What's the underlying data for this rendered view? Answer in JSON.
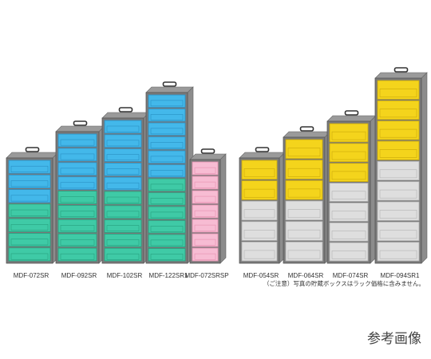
{
  "labels": [
    "MDF-072SR",
    "MDF-092SR",
    "MDF-102SR",
    "MDF-122SR1",
    "MDF-072SRSP",
    "MDF-054SR",
    "MDF-064SR",
    "MDF-074SR",
    "MDF-094SR1"
  ],
  "note": "（ご注意）写真の貯蔵ボックスはラック価格に含みません。",
  "caption": "参考画像"
}
